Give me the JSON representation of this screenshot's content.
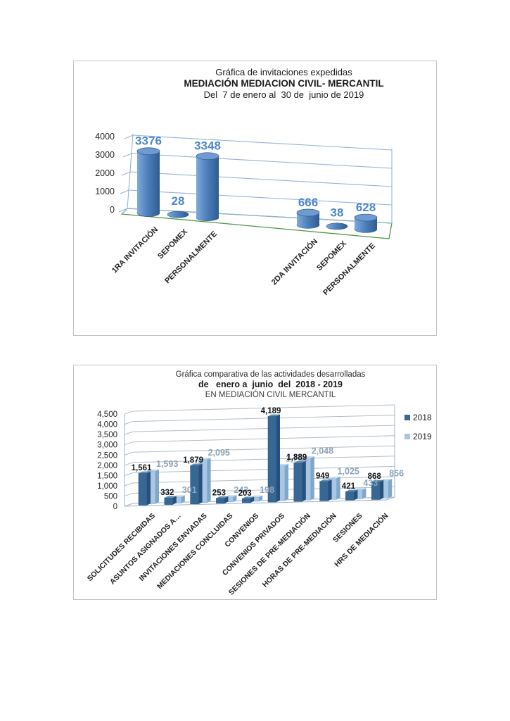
{
  "page": {
    "background": "#ffffff"
  },
  "chart_data": [
    {
      "id": "invitaciones-expedidas",
      "type": "bar",
      "variant": "3d-cylinder",
      "title": "Gráfica de invitaciones expedidas",
      "subtitle": "MEDIACIÓN MEDIACION CIVIL- MERCANTIL",
      "period": "Del  7 de enero al  30 de  junio de 2019",
      "categories": [
        "1RA INVITACIÓN",
        "SEPOMEX",
        "PERSONALMENTE",
        "2DA INVITACIÓN",
        "SEPOMEX",
        "PERSONALMENTE"
      ],
      "values": [
        3376,
        28,
        3348,
        666,
        38,
        628
      ],
      "value_labels": [
        "3376",
        "28",
        "3348",
        "666",
        "38",
        "628"
      ],
      "groups": [
        0,
        0,
        0,
        1,
        1,
        1
      ],
      "ylim": [
        0,
        4000
      ],
      "ytick_step": 1000,
      "yticks": [
        "0",
        "1000",
        "2000",
        "3000",
        "4000"
      ],
      "grid": true,
      "legend": null,
      "xlabel": "",
      "ylabel": ""
    },
    {
      "id": "comparativa-actividades",
      "type": "bar",
      "variant": "3d-column-clustered",
      "title": "Gráfica comparativa de las actividades desarrolladas",
      "subtitle": "de   enero a  junio  del  2018 - 2019",
      "subtitle2": "EN MEDIACIÓN CIVIL MERCANTIL",
      "categories": [
        "SOLICITUDES RECIBIDAS",
        "ASUNTOS ASIGNADOS A…",
        "INVITACIONES ENVIADAS",
        "MEDIACIONES CONCLUIDAS",
        "CONVENIOS",
        "CONVENIOS PRIVADOS",
        "SESIONES DE PRE-MEDIACIÓN",
        "HORAS DE PRE-MEDIACIÓN",
        "SESIONES",
        "HRS DE MEDIACIÓN"
      ],
      "series": [
        {
          "name": "2018",
          "values": [
            1561,
            332,
            1879,
            253,
            203,
            4189,
            1889,
            949,
            421,
            868
          ],
          "labels": [
            "1,561",
            "332",
            "1,879",
            "253",
            "203",
            "4,189",
            "1,889",
            "949",
            "421",
            "868"
          ]
        },
        {
          "name": "2019",
          "values": [
            1593,
            301,
            2095,
            243,
            198,
            1704,
            2048,
            1025,
            433,
            856
          ],
          "labels": [
            "1,593",
            "301",
            "2,095",
            "243",
            "198",
            "1,704",
            "2,048",
            "1,025",
            "433",
            "856"
          ]
        }
      ],
      "ylim": [
        0,
        4500
      ],
      "ytick_step": 500,
      "yticks": [
        "0",
        "500",
        "1,000",
        "1,500",
        "2,000",
        "2,500",
        "3,000",
        "3,500",
        "4,000",
        "4,500"
      ],
      "grid": true,
      "legend": [
        "2018",
        "2019"
      ],
      "legend_position": "right",
      "xlabel": "",
      "ylabel": ""
    }
  ],
  "colors": {
    "chart1": {
      "cylinder_light": "#7fa9da",
      "cylinder_mid": "#4f81bd",
      "cylinder_dark": "#2e5c8f",
      "cylinder_top": "#6f9bd2",
      "grid": "#95b3d7",
      "floor_edge": "#4e9a45",
      "data_label": "#4e87c7",
      "axis_text": "#262626",
      "cat_text": "#1f1f1f"
    },
    "chart2": {
      "s2018_front": "#376795",
      "s2018_side": "#27517a",
      "s2018_top": "#5e8cb3",
      "s2019_front": "#a9c7e3",
      "s2019_side": "#7fa7c9",
      "s2019_top": "#c4d9ec",
      "grid": "#b3bdc7",
      "border": "#9ab3cf",
      "label_2018": "#141414",
      "label_2019": "#8da4b8",
      "axis_text": "#262626",
      "cat_text": "#1f1f1f",
      "legend_text": "#1a1a1a"
    }
  }
}
